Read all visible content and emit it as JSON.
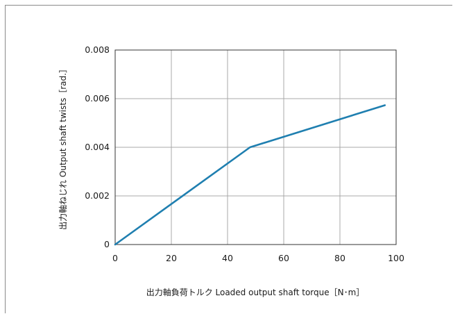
{
  "chart_data": {
    "type": "line",
    "title": "",
    "xlabel": "出力軸負荷トルク Loaded output shaft torque［N･m］",
    "ylabel": "出力軸ねじれ Output shaft twists［rad.］",
    "xlim": [
      0,
      100
    ],
    "ylim": [
      0,
      0.008
    ],
    "xticks": [
      "0",
      "20",
      "40",
      "60",
      "80",
      "100"
    ],
    "yticks": [
      "0",
      "0.002",
      "0.004",
      "0.006",
      "0.008"
    ],
    "grid": true,
    "series": [
      {
        "color": "#1f7fb0",
        "x": [
          0,
          48,
          96
        ],
        "y": [
          0,
          0.004,
          0.00573
        ]
      }
    ]
  }
}
